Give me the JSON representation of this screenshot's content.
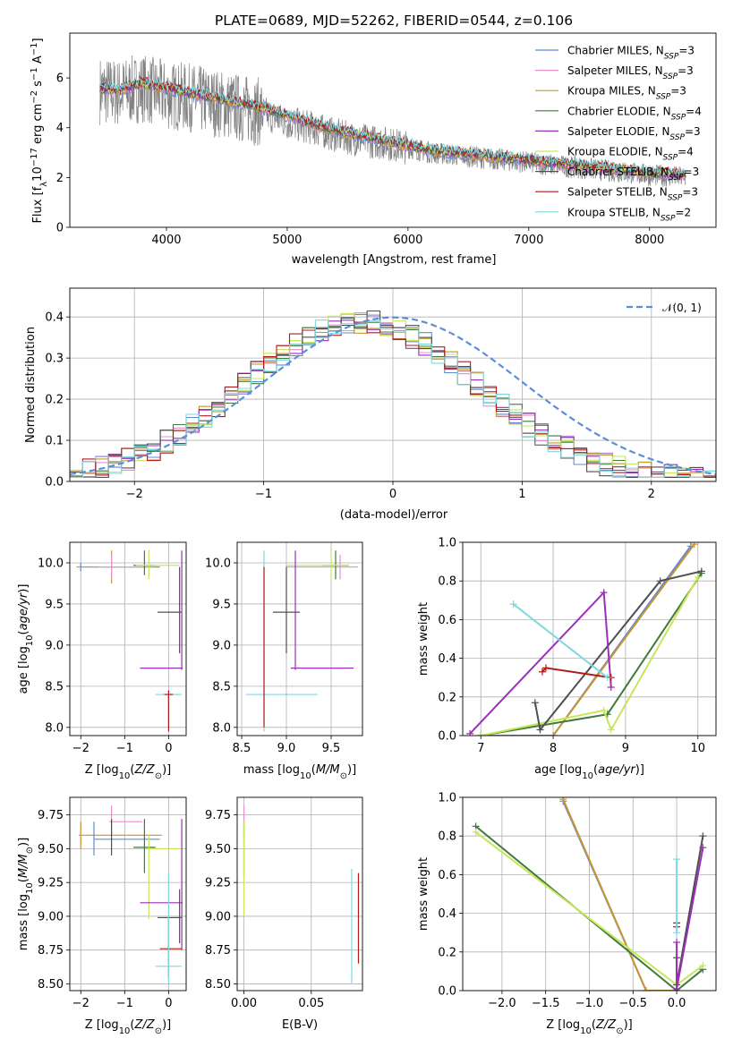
{
  "title": "PLATE=0689, MJD=52262, FIBERID=0544, z=0.106",
  "models": [
    {
      "name": "Chabrier MILES",
      "nssp": "3",
      "color": "#5b8bd6"
    },
    {
      "name": "Salpeter MILES",
      "nssp": "3",
      "color": "#e88fc9"
    },
    {
      "name": "Kroupa MILES",
      "nssp": "3",
      "color": "#c9952e"
    },
    {
      "name": "Chabrier ELODIE",
      "nssp": "4",
      "color": "#3f7a3f"
    },
    {
      "name": "Salpeter ELODIE",
      "nssp": "3",
      "color": "#9b2fb8"
    },
    {
      "name": "Kroupa ELODIE",
      "nssp": "4",
      "color": "#c8e65a"
    },
    {
      "name": "Chabrier STELIB",
      "nssp": "3",
      "color": "#505050"
    },
    {
      "name": "Salpeter STELIB",
      "nssp": "3",
      "color": "#b01c1c"
    },
    {
      "name": "Kroupa STELIB",
      "nssp": "2",
      "color": "#7fd8dc"
    }
  ],
  "nssp_prefix": "N",
  "nssp_sub": "SSP",
  "nssp_eq": "=",
  "chart_data": [
    {
      "id": "spectrum",
      "type": "line",
      "xlabel": "wavelength [Angstrom, rest frame]",
      "ylabel": "Flux [f_λ 10^-17 erg cm^-2 s^-1 A^-1]",
      "ylabel_parts": [
        "Flux [f",
        "λ",
        "10",
        "−17",
        " erg cm",
        "−2",
        " s",
        "−1",
        " A",
        "−1",
        "]"
      ],
      "xlim": [
        3200,
        8550
      ],
      "ylim": [
        0,
        7.8
      ],
      "xticks": [
        "4000",
        "5000",
        "6000",
        "7000",
        "8000"
      ],
      "yticks": [
        "0",
        "2",
        "4",
        "6"
      ],
      "data_series": {
        "name": "",
        "color": "#808080",
        "x": [
          3450,
          3600,
          3800,
          4000,
          4200,
          4400,
          4600,
          4800,
          5000,
          5200,
          5400,
          5600,
          5800,
          6000,
          6200,
          6400,
          6600,
          6800,
          7000,
          7200,
          7400,
          7600,
          7800,
          8000,
          8300
        ],
        "y": [
          5.5,
          5.4,
          5.6,
          5.3,
          5.2,
          5.0,
          4.8,
          4.6,
          4.2,
          4.0,
          3.7,
          3.5,
          3.4,
          3.2,
          3.0,
          2.9,
          2.8,
          2.7,
          2.6,
          2.5,
          2.4,
          2.3,
          2.2,
          2.1,
          2.0
        ]
      },
      "model_x": [
        3450,
        3600,
        3800,
        4000,
        4200,
        4400,
        4600,
        4800,
        5000,
        5200,
        5400,
        5600,
        5800,
        6000,
        6200,
        6400,
        6600,
        6800,
        7000,
        7200,
        7400,
        7600,
        7800,
        8000,
        8300
      ],
      "model_y": [
        5.6,
        5.5,
        5.8,
        5.6,
        5.4,
        5.2,
        5.0,
        4.8,
        4.5,
        4.2,
        3.9,
        3.7,
        3.5,
        3.3,
        3.1,
        3.0,
        2.9,
        2.8,
        2.7,
        2.6,
        2.5,
        2.4,
        2.3,
        2.2,
        2.1
      ]
    },
    {
      "id": "residuals",
      "type": "bar",
      "xlabel": "(data-model)/error",
      "ylabel": "Normed distribution",
      "xlim": [
        -2.5,
        2.5
      ],
      "ylim": [
        0,
        0.47
      ],
      "xticks": [
        "−2",
        "−1",
        "0",
        "1",
        "2"
      ],
      "yticks": [
        "0.0",
        "0.1",
        "0.2",
        "0.3",
        "0.4"
      ],
      "gauss_legend": "𝒩(0, 1)",
      "bin_width": 0.1
    },
    {
      "id": "age-vs-Z",
      "type": "scatter",
      "xlabel": "Z [log10(Z/Z⊙)]",
      "ylabel": "age [log10(age/yr)]",
      "xlim": [
        -2.25,
        0.4
      ],
      "ylim": [
        7.9,
        10.25
      ],
      "xticks": [
        "−2",
        "−1",
        "0"
      ],
      "yticks": [
        "8.0",
        "8.5",
        "9.0",
        "9.5",
        "10.0"
      ],
      "points": [
        {
          "m": 0,
          "x": -2.0,
          "y": 9.95,
          "xe": [
            -2.0,
            -0.2
          ],
          "ye": [
            9.9,
            10.0
          ]
        },
        {
          "m": 2,
          "x": -1.3,
          "y": 9.95,
          "xe": [
            -2.1,
            -0.3
          ],
          "ye": [
            9.75,
            10.15
          ]
        },
        {
          "m": 1,
          "x": -1.3,
          "y": 9.95,
          "xe": [
            -1.6,
            -0.6
          ],
          "ye": [
            9.8,
            10.1
          ]
        },
        {
          "m": 3,
          "x": -0.55,
          "y": 9.97,
          "xe": [
            -0.8,
            -0.3
          ],
          "ye": [
            9.85,
            10.15
          ]
        },
        {
          "m": 5,
          "x": -0.45,
          "y": 9.97,
          "xe": [
            -0.75,
            0.25
          ],
          "ye": [
            9.8,
            10.15
          ]
        },
        {
          "m": 6,
          "x": 0.25,
          "y": 9.4,
          "xe": [
            -0.25,
            0.3
          ],
          "ye": [
            8.9,
            9.95
          ]
        },
        {
          "m": 4,
          "x": 0.3,
          "y": 8.72,
          "xe": [
            -0.65,
            0.32
          ],
          "ye": [
            8.7,
            10.15
          ]
        },
        {
          "m": 8,
          "x": 0.0,
          "y": 8.4,
          "xe": [
            -0.3,
            0.3
          ],
          "ye": [
            7.95,
            8.45
          ]
        },
        {
          "m": 7,
          "x": 0.0,
          "y": 8.4,
          "xe": [
            -0.1,
            0.1
          ],
          "ye": [
            7.95,
            8.45
          ]
        }
      ]
    },
    {
      "id": "age-vs-mass",
      "type": "scatter",
      "xlabel": "mass [log10(M/M⊙)]",
      "ylabel": "",
      "xlim": [
        8.45,
        9.85
      ],
      "ylim": [
        7.9,
        10.25
      ],
      "xticks": [
        "8.5",
        "9.0",
        "9.5"
      ],
      "yticks": [
        "8.0",
        "8.5",
        "9.0",
        "9.5",
        "10.0"
      ],
      "points": [
        {
          "m": 1,
          "x": 9.6,
          "y": 9.95,
          "xe": [
            9.0,
            9.8
          ],
          "ye": [
            9.8,
            10.1
          ]
        },
        {
          "m": 3,
          "x": 9.55,
          "y": 9.97,
          "xe": [
            9.4,
            9.7
          ],
          "ye": [
            9.8,
            10.15
          ]
        },
        {
          "m": 5,
          "x": 9.5,
          "y": 9.97,
          "xe": [
            9.0,
            9.7
          ],
          "ye": [
            9.8,
            10.15
          ]
        },
        {
          "m": 6,
          "x": 9.0,
          "y": 9.4,
          "xe": [
            8.85,
            9.15
          ],
          "ye": [
            8.9,
            9.95
          ]
        },
        {
          "m": 4,
          "x": 9.1,
          "y": 8.72,
          "xe": [
            9.05,
            9.75
          ],
          "ye": [
            8.7,
            10.15
          ]
        },
        {
          "m": 8,
          "x": 8.75,
          "y": 8.4,
          "xe": [
            8.55,
            9.35
          ],
          "ye": [
            7.95,
            10.15
          ]
        },
        {
          "m": 7,
          "x": 8.75,
          "y": 8.4,
          "xe": [
            8.75,
            8.75
          ],
          "ye": [
            8.0,
            9.95
          ]
        }
      ]
    },
    {
      "id": "mass-weight-vs-age",
      "type": "line",
      "xlabel": "age [log10(age/yr)]",
      "ylabel": "mass weight",
      "xlim": [
        6.75,
        10.25
      ],
      "ylim": [
        0,
        1.0
      ],
      "xticks": [
        "7",
        "8",
        "9",
        "10"
      ],
      "yticks": [
        "0.0",
        "0.2",
        "0.4",
        "0.6",
        "0.8",
        "1.0"
      ],
      "series": [
        {
          "m": 0,
          "x": [
            7.0,
            8.0,
            9.9
          ],
          "y": [
            0.0,
            0.0,
            0.98
          ]
        },
        {
          "m": 2,
          "x": [
            7.0,
            8.0,
            9.95
          ],
          "y": [
            0.0,
            0.0,
            0.99
          ]
        },
        {
          "m": 3,
          "x": [
            7.0,
            8.75,
            10.05
          ],
          "y": [
            0.0,
            0.11,
            0.84
          ]
        },
        {
          "m": 5,
          "x": [
            7.0,
            8.7,
            8.8,
            10.0
          ],
          "y": [
            0.0,
            0.13,
            0.03,
            0.82
          ]
        },
        {
          "m": 6,
          "x": [
            7.75,
            7.82,
            9.48,
            10.05
          ],
          "y": [
            0.17,
            0.03,
            0.8,
            0.85
          ]
        },
        {
          "m": 4,
          "x": [
            6.85,
            8.7,
            8.8
          ],
          "y": [
            0.01,
            0.74,
            0.25
          ]
        },
        {
          "m": 7,
          "x": [
            7.85,
            7.9,
            8.8
          ],
          "y": [
            0.33,
            0.35,
            0.3
          ]
        },
        {
          "m": 8,
          "x": [
            7.45,
            8.75
          ],
          "y": [
            0.68,
            0.3
          ]
        }
      ]
    },
    {
      "id": "mass-vs-Z",
      "type": "scatter",
      "xlabel": "Z [log10(Z/Z⊙)]",
      "ylabel": "mass [log10(M/M⊙)]",
      "xlim": [
        -2.25,
        0.4
      ],
      "ylim": [
        8.45,
        9.88
      ],
      "xticks": [
        "−2",
        "−1",
        "0"
      ],
      "yticks": [
        "8.50",
        "8.75",
        "9.00",
        "9.25",
        "9.50",
        "9.75"
      ],
      "points": [
        {
          "m": 1,
          "x": -1.3,
          "y": 9.7,
          "xe": [
            -1.35,
            -0.6
          ],
          "ye": [
            9.6,
            9.82
          ]
        },
        {
          "m": 2,
          "x": -2.0,
          "y": 9.6,
          "xe": [
            -2.05,
            -0.15
          ],
          "ye": [
            9.5,
            9.7
          ]
        },
        {
          "m": 0,
          "x": -1.7,
          "y": 9.57,
          "xe": [
            -1.7,
            -0.2
          ],
          "ye": [
            9.45,
            9.7
          ]
        },
        {
          "m": 6,
          "x": -1.3,
          "y": 9.57,
          "xe": [
            -1.3,
            -1.3
          ],
          "ye": [
            9.45,
            9.72
          ]
        },
        {
          "m": 3,
          "x": -0.55,
          "y": 9.51,
          "xe": [
            -0.8,
            -0.3
          ],
          "ye": [
            9.32,
            9.72
          ]
        },
        {
          "m": 5,
          "x": -0.45,
          "y": 9.5,
          "xe": [
            -0.5,
            0.3
          ],
          "ye": [
            8.98,
            9.6
          ]
        },
        {
          "m": 4,
          "x": 0.3,
          "y": 9.1,
          "xe": [
            -0.65,
            0.32
          ],
          "ye": [
            8.75,
            9.72
          ]
        },
        {
          "m": 6,
          "x": 0.25,
          "y": 8.99,
          "xe": [
            -0.25,
            0.3
          ],
          "ye": [
            8.8,
            9.2
          ]
        },
        {
          "m": 7,
          "x": 0.0,
          "y": 8.76,
          "xe": [
            -0.2,
            0.3
          ],
          "ye": [
            8.55,
            8.98
          ]
        },
        {
          "m": 8,
          "x": 0.0,
          "y": 8.63,
          "xe": [
            -0.3,
            0.3
          ],
          "ye": [
            8.5,
            9.32
          ]
        }
      ]
    },
    {
      "id": "mass-vs-ebv",
      "type": "scatter",
      "xlabel": "E(B-V)",
      "ylabel": "",
      "xlim": [
        -0.005,
        0.088
      ],
      "ylim": [
        8.45,
        9.88
      ],
      "xticks": [
        "0.00",
        "0.05"
      ],
      "yticks": [
        "8.50",
        "8.75",
        "9.00",
        "9.25",
        "9.50",
        "9.75"
      ],
      "points": [
        {
          "m": 1,
          "x": 0.0,
          "y": 9.7,
          "xe": [
            0.0,
            0.0
          ],
          "ye": [
            9.6,
            9.82
          ]
        },
        {
          "m": 3,
          "x": 0.0,
          "y": 9.6,
          "xe": [
            0.0,
            0.0
          ],
          "ye": [
            9.3,
            9.7
          ]
        },
        {
          "m": 5,
          "x": 0.0,
          "y": 9.5,
          "xe": [
            0.0,
            0.0
          ],
          "ye": [
            9.0,
            9.7
          ]
        },
        {
          "m": 8,
          "x": 0.08,
          "y": 8.9,
          "xe": [
            0.08,
            0.08
          ],
          "ye": [
            8.5,
            9.35
          ]
        },
        {
          "m": 7,
          "x": 0.085,
          "y": 8.9,
          "xe": [
            0.085,
            0.085
          ],
          "ye": [
            8.65,
            9.32
          ]
        }
      ]
    },
    {
      "id": "mass-weight-vs-Z",
      "type": "line",
      "xlabel": "Z [log10(Z/Z⊙)]",
      "ylabel": "mass weight",
      "xlim": [
        -2.45,
        0.45
      ],
      "ylim": [
        0,
        1.0
      ],
      "xticks": [
        "−2.0",
        "−1.5",
        "−1.0",
        "−0.5",
        "0.0",
        "0.5"
      ],
      "yticks": [
        "0.0",
        "0.2",
        "0.4",
        "0.6",
        "0.8",
        "1.0"
      ],
      "series": [
        {
          "m": 0,
          "x": [
            -1.3,
            -0.35,
            0.0
          ],
          "y": [
            0.98,
            0.0,
            0.0
          ]
        },
        {
          "m": 2,
          "x": [
            -1.3,
            -0.35,
            0.0
          ],
          "y": [
            0.99,
            0.0,
            0.0
          ]
        },
        {
          "m": 3,
          "x": [
            -2.3,
            0.0,
            0.3
          ],
          "y": [
            0.85,
            0.0,
            0.11
          ]
        },
        {
          "m": 5,
          "x": [
            -2.3,
            0.0,
            0.3
          ],
          "y": [
            0.82,
            0.03,
            0.13
          ]
        },
        {
          "m": 6,
          "x": [
            0.0,
            0.0,
            0.3
          ],
          "y": [
            0.17,
            0.03,
            0.8
          ]
        },
        {
          "m": 4,
          "x": [
            0.0,
            0.0,
            0.3
          ],
          "y": [
            0.25,
            0.01,
            0.74
          ]
        },
        {
          "m": 7,
          "x": [
            0.0,
            0.0
          ],
          "y": [
            0.33,
            0.35
          ]
        },
        {
          "m": 8,
          "x": [
            0.0,
            0.0
          ],
          "y": [
            0.68,
            0.3
          ]
        }
      ]
    }
  ]
}
